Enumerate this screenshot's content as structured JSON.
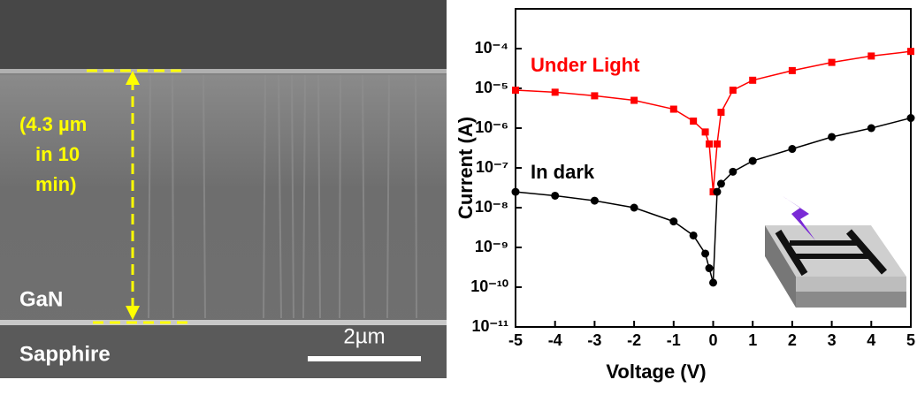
{
  "image": {
    "thickness_label": [
      "(4.3 µm",
      "in 10",
      "min)"
    ],
    "layer_top": "GaN",
    "layer_bottom": "Sapphire",
    "scale_bar": "2µm"
  },
  "chart_data": {
    "type": "scatter",
    "x_label": "Voltage (V)",
    "y_label": "Current (A)",
    "log_y": true,
    "x": [
      -5,
      -4,
      -3,
      -2,
      -1,
      -0.5,
      -0.2,
      -0.1,
      0,
      0.1,
      0.2,
      0.5,
      1,
      2,
      3,
      4,
      5
    ],
    "series": [
      {
        "name": "Under Light",
        "color": "#ff0000",
        "marker": "square",
        "values": [
          9e-06,
          8e-06,
          6.5e-06,
          5e-06,
          3e-06,
          1.5e-06,
          8e-07,
          4e-07,
          2.5e-08,
          4e-07,
          2.5e-06,
          9e-06,
          1.6e-05,
          2.8e-05,
          4.5e-05,
          6.5e-05,
          8.5e-05
        ]
      },
      {
        "name": "In dark",
        "color": "#000000",
        "marker": "circle",
        "values": [
          2.5e-08,
          2e-08,
          1.5e-08,
          1e-08,
          4.5e-09,
          2e-09,
          7e-10,
          3e-10,
          1.3e-10,
          2.5e-08,
          4e-08,
          8e-08,
          1.5e-07,
          3e-07,
          6e-07,
          1e-06,
          1.8e-06
        ]
      }
    ],
    "xlim": [
      -5,
      5
    ],
    "xticks": [
      -5,
      -4,
      -3,
      -2,
      -1,
      0,
      1,
      2,
      3,
      4,
      5
    ],
    "ylim": [
      1e-11,
      0.001
    ],
    "yticks": [
      {
        "value": 1e-11,
        "label": "10⁻¹¹"
      },
      {
        "value": 1e-10,
        "label": "10⁻¹⁰"
      },
      {
        "value": 1e-09,
        "label": "10⁻⁹"
      },
      {
        "value": 1e-08,
        "label": "10⁻⁸"
      },
      {
        "value": 1e-07,
        "label": "10⁻⁷"
      },
      {
        "value": 1e-06,
        "label": "10⁻⁶"
      },
      {
        "value": 1e-05,
        "label": "10⁻⁵"
      },
      {
        "value": 0.0001,
        "label": "10⁻⁴"
      }
    ]
  }
}
